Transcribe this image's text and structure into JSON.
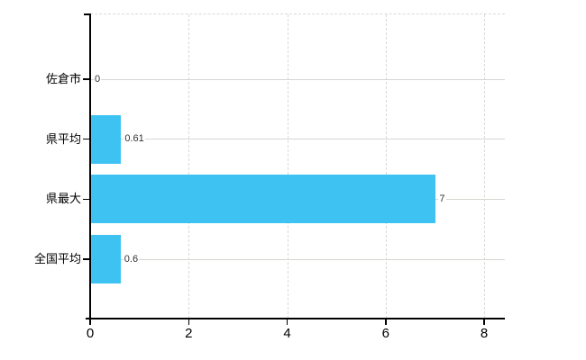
{
  "chart": {
    "background_color": "#ffffff",
    "bar_color": "#3dc2f2",
    "axis_color": "#000000",
    "grid_solid_color": "#d2d8d1",
    "grid_dashed_color": "#d9d9d9",
    "category_label_color": "#000000",
    "tick_label_color": "#000000",
    "value_label_color": "#333333"
  },
  "chart_data": {
    "type": "bar",
    "orientation": "horizontal",
    "title": "",
    "xlabel": "",
    "ylabel": "",
    "categories": [
      "佐倉市",
      "県平均",
      "県最大",
      "全国平均"
    ],
    "values": [
      0,
      0.61,
      7,
      0.6
    ],
    "value_labels": [
      "0",
      "0.61",
      "7",
      "0.6"
    ],
    "xlim": [
      0,
      8
    ],
    "x_ticks": [
      0,
      2,
      4,
      6,
      8
    ],
    "x_tick_labels": [
      "0",
      "2",
      "4",
      "6",
      "8"
    ],
    "grid": true,
    "legend": false
  }
}
